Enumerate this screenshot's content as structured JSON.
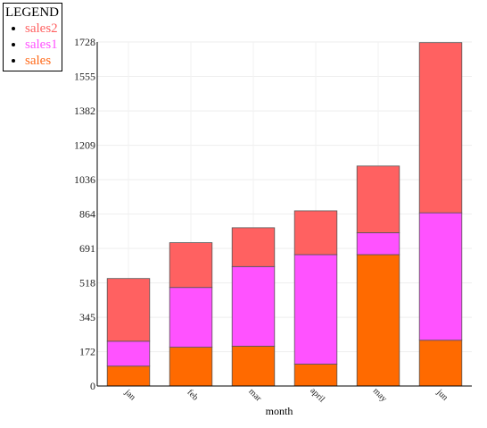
{
  "legend": {
    "title": "LEGEND",
    "items": [
      {
        "label": "sales2",
        "color": "#ff6161"
      },
      {
        "label": "sales1",
        "color": "#ff52ff"
      },
      {
        "label": "sales",
        "color": "#ff6a1a"
      }
    ]
  },
  "chart_data": {
    "type": "bar",
    "stacked": true,
    "categories": [
      "jan",
      "feb",
      "mar",
      "april",
      "may",
      "jun"
    ],
    "series": [
      {
        "name": "sales",
        "color": "#ff6a00",
        "values": [
          100,
          195,
          200,
          110,
          660,
          230
        ]
      },
      {
        "name": "sales1",
        "color": "#ff52ff",
        "values": [
          125,
          300,
          400,
          550,
          110,
          640
        ]
      },
      {
        "name": "sales2",
        "color": "#ff6161",
        "values": [
          315,
          225,
          195,
          220,
          335,
          855
        ]
      }
    ],
    "xlabel": "month",
    "ylabel": "",
    "ylim": [
      0,
      1728
    ],
    "yticks": [
      0,
      172,
      345,
      518,
      691,
      864,
      1036,
      1209,
      1382,
      1555,
      1728
    ],
    "grid": true,
    "legend_position": "top-left"
  }
}
